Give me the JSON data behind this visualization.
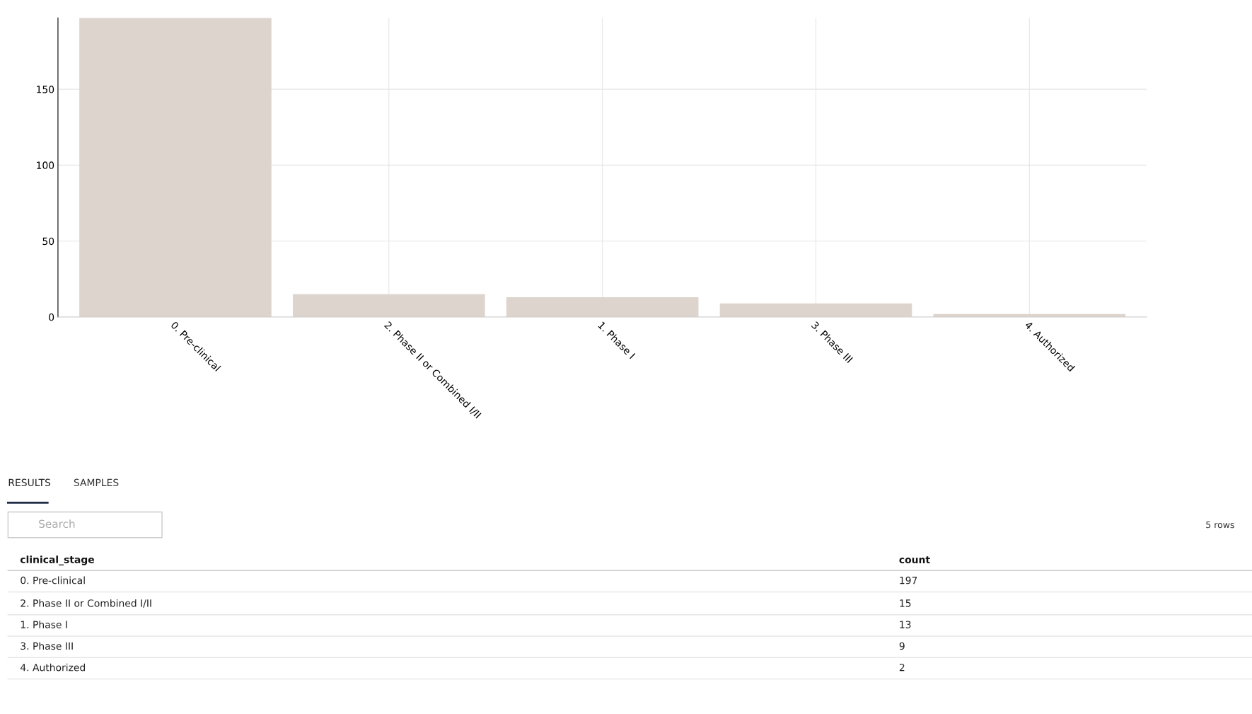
{
  "chart_data": {
    "type": "bar",
    "categories": [
      "0. Pre-clinical",
      "2. Phase II or Combined I/II",
      "1. Phase I",
      "3. Phase III",
      "4. Authorized"
    ],
    "values": [
      197,
      15,
      13,
      9,
      2
    ],
    "color": "#ddd5cd",
    "ylim": [
      0,
      197
    ],
    "yticks": [
      0,
      50,
      100,
      150
    ],
    "grid": true,
    "annotations": [
      "RESULTS",
      "SAMPLES",
      "Search",
      "5 rows",
      "clinical_stage",
      "count",
      "0. Pre-clinical",
      "197",
      "2. Phase II or Combined I/II",
      "15",
      "1. Phase I",
      "13",
      "3. Phase III",
      "9",
      "4. Authorized",
      "2"
    ]
  }
}
